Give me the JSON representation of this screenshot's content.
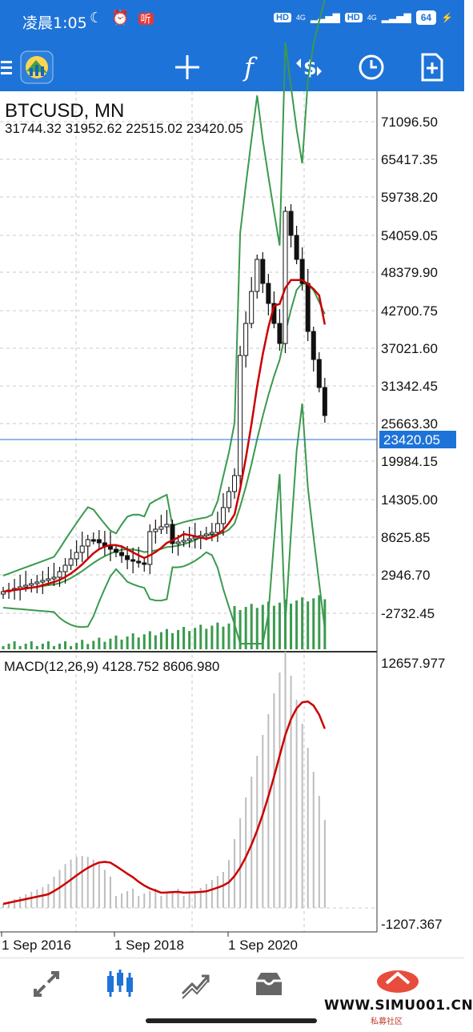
{
  "status_bar": {
    "time": "凌晨1:05",
    "icons": "☾ ⏰",
    "app_badge": "听",
    "net1": "HD",
    "net1_sub": "4G",
    "net2": "HD",
    "net2_sub": "4G",
    "battery": "64"
  },
  "toolbar": {
    "menu_icon": "hamburger-icon",
    "app_icon": "metatrader-logo",
    "crosshair": "crosshair-icon",
    "indicators": "function-f-icon",
    "trade": "dollar-arrows-icon",
    "timeframe": "clock-icon",
    "new_order": "new-order-icon"
  },
  "chart": {
    "symbol": "BTCUSD, MN",
    "ohlc": "31744.32 31952.62 22515.02 23420.05",
    "current_price": "23420.05",
    "price_ticks": [
      "71096.50",
      "65417.35",
      "59738.20",
      "54059.05",
      "48379.90",
      "42700.75",
      "37021.60",
      "31342.45",
      "25663.30",
      "19984.15",
      "14305.00",
      "8625.85",
      "2946.70",
      "-2732.45"
    ],
    "macd_label": "MACD(12,26,9) 4128.752 8606.980",
    "macd_top": "12657.977",
    "macd_bottom": "-1207.367",
    "dates": [
      "1 Sep 2016",
      "1 Sep 2018",
      "1 Sep 2020"
    ],
    "colors": {
      "bollinger": "#3a9a4e",
      "ma": "#cc0000",
      "current_line": "#1e73d8",
      "volume": "#3a9a4e",
      "macd_hist": "#bdbdbd",
      "macd_signal": "#cc0000"
    }
  },
  "bottom_nav": {
    "quotes": "arrows-icon",
    "chart": "candles-icon",
    "trade": "trend-lines-icon",
    "history": "inbox-icon"
  },
  "watermark": {
    "text": "WWW.SIMU001.CN",
    "sub": "私募社区"
  }
}
